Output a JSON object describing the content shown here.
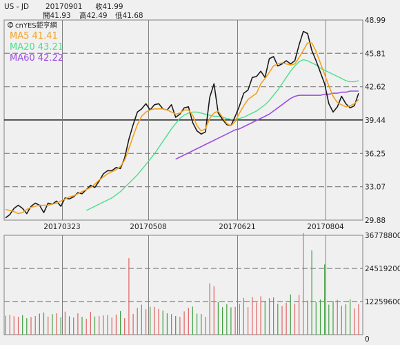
{
  "header": {
    "symbol": "US - JD",
    "date": "20170901",
    "close": "收41.99",
    "open": "開41.93",
    "high": "高42.49",
    "low": "低41.68"
  },
  "brand": {
    "text": "cnYES鉅亨網",
    "icon": "copyright-icon"
  },
  "legend": {
    "ma5": "MA5 41.41",
    "ma20": "MA20 43.21",
    "ma60": "MA60 42.22"
  },
  "colors": {
    "background": "#f0f0f0",
    "price": "#1a1a1a",
    "ma5": "#f5a018",
    "ma20": "#48e08a",
    "ma60": "#9a4ee0",
    "vol_up": "#e06060",
    "vol_down": "#40a040",
    "grid": "#808080",
    "border": "#808080"
  },
  "chart_data": [
    {
      "type": "line",
      "name": "price",
      "x_ticks": [
        "20170323",
        "20170508",
        "20170621",
        "20170804"
      ],
      "y_ticks": [
        "48.99",
        "45.81",
        "42.62",
        "39.44",
        "36.25",
        "33.07",
        "29.88"
      ],
      "ylim": [
        29.88,
        48.99
      ],
      "reference_line": 39.44,
      "series": [
        {
          "name": "MA5",
          "key": "ma5",
          "values": [
            30.9,
            30.8,
            30.7,
            30.5,
            30.6,
            30.9,
            31.1,
            31.2,
            31.3,
            31.3,
            31.3,
            31.4,
            31.5,
            31.7,
            31.9,
            32.1,
            32.2,
            32.4,
            32.6,
            32.8,
            33.0,
            33.3,
            33.7,
            34.0,
            34.3,
            34.5,
            34.7,
            35.0,
            35.6,
            36.7,
            37.9,
            39.0,
            39.8,
            40.2,
            40.4,
            40.5,
            40.5,
            40.5,
            40.4,
            40.2,
            40.0,
            40.1,
            40.4,
            40.4,
            39.9,
            38.9,
            38.4,
            38.6,
            39.6,
            40.1,
            40.3,
            39.7,
            39.1,
            38.9,
            39.3,
            40.1,
            40.8,
            41.4,
            41.7,
            42.0,
            42.9,
            43.4,
            44.0,
            44.6,
            44.8,
            44.9,
            44.8,
            44.7,
            44.8,
            45.4,
            46.1,
            46.8,
            46.8,
            46.0,
            44.9,
            43.8,
            42.7,
            41.7,
            41.1,
            40.9,
            40.7,
            40.8,
            41.0,
            41.4
          ]
        },
        {
          "name": "MA20",
          "key": "ma20",
          "values": [
            null,
            null,
            null,
            null,
            null,
            null,
            null,
            null,
            null,
            null,
            null,
            null,
            null,
            null,
            null,
            null,
            null,
            null,
            null,
            30.8,
            31.0,
            31.2,
            31.4,
            31.6,
            31.8,
            32.0,
            32.3,
            32.6,
            33.0,
            33.4,
            33.8,
            34.2,
            34.7,
            35.2,
            35.7,
            36.2,
            36.8,
            37.4,
            38.0,
            38.6,
            39.1,
            39.6,
            39.9,
            40.1,
            40.2,
            40.2,
            40.1,
            40.0,
            39.9,
            39.8,
            39.8,
            39.7,
            39.6,
            39.5,
            39.5,
            39.6,
            39.7,
            39.9,
            40.1,
            40.3,
            40.6,
            40.9,
            41.3,
            41.8,
            42.3,
            42.9,
            43.5,
            44.1,
            44.6,
            45.0,
            45.2,
            45.1,
            44.9,
            44.7,
            44.4,
            44.2,
            44.0,
            43.8,
            43.6,
            43.4,
            43.2,
            43.1,
            43.1,
            43.2
          ]
        },
        {
          "name": "MA60",
          "key": "ma60",
          "values": [
            null,
            null,
            null,
            null,
            null,
            null,
            null,
            null,
            null,
            null,
            null,
            null,
            null,
            null,
            null,
            null,
            null,
            null,
            null,
            null,
            null,
            null,
            null,
            null,
            null,
            null,
            null,
            null,
            null,
            null,
            null,
            null,
            null,
            null,
            null,
            null,
            null,
            null,
            null,
            null,
            35.7,
            35.9,
            36.1,
            36.3,
            36.5,
            36.7,
            36.9,
            37.1,
            37.3,
            37.5,
            37.7,
            37.9,
            38.1,
            38.3,
            38.5,
            38.6,
            38.8,
            39.0,
            39.2,
            39.4,
            39.6,
            39.8,
            40.0,
            40.3,
            40.6,
            40.9,
            41.2,
            41.5,
            41.7,
            41.8,
            41.8,
            41.8,
            41.8,
            41.8,
            41.8,
            41.9,
            41.9,
            42.0,
            42.0,
            42.1,
            42.1,
            42.2,
            42.2,
            42.2
          ]
        },
        {
          "name": "Close",
          "key": "price",
          "values": [
            30.1,
            30.4,
            31.0,
            31.3,
            31.0,
            30.5,
            31.2,
            31.5,
            31.3,
            30.6,
            31.5,
            31.4,
            31.7,
            31.2,
            32.0,
            31.9,
            32.1,
            32.5,
            32.4,
            32.8,
            33.2,
            33.0,
            33.6,
            34.3,
            34.6,
            34.6,
            34.9,
            34.8,
            35.8,
            37.6,
            39.0,
            40.2,
            40.5,
            41.0,
            40.4,
            40.9,
            41.0,
            40.5,
            40.4,
            40.9,
            39.7,
            40.0,
            40.6,
            40.7,
            39.2,
            38.4,
            38.1,
            38.3,
            41.6,
            42.9,
            40.1,
            39.5,
            39.0,
            38.9,
            39.8,
            40.8,
            42.0,
            42.3,
            43.5,
            43.6,
            44.1,
            43.5,
            45.3,
            45.5,
            44.6,
            44.8,
            45.1,
            44.8,
            45.1,
            46.6,
            47.9,
            47.7,
            46.1,
            45.1,
            44.0,
            42.9,
            41.0,
            40.2,
            40.7,
            41.7,
            41.0,
            40.6,
            40.8,
            41.99
          ]
        }
      ]
    },
    {
      "type": "bar",
      "name": "volume",
      "y_ticks": [
        "36778800",
        "24519200",
        "12259600",
        "0"
      ],
      "ylim": [
        0,
        36778800
      ],
      "values": [
        7.0,
        7.3,
        6.8,
        6.6,
        7.2,
        6.1,
        6.5,
        6.9,
        7.8,
        8.2,
        6.7,
        7.6,
        7.9,
        6.4,
        8.5,
        6.8,
        6.3,
        7.9,
        6.6,
        5.9,
        8.4,
        6.7,
        6.9,
        7.1,
        7.3,
        6.3,
        7.4,
        8.7,
        6.1,
        28.3,
        7.7,
        9.9,
        11.1,
        9.4,
        10.3,
        10.3,
        9.5,
        8.9,
        7.9,
        7.6,
        6.9,
        6.6,
        8.6,
        9.9,
        10.4,
        7.8,
        7.7,
        6.6,
        19.0,
        17.9,
        12.1,
        10.2,
        11.3,
        10.1,
        10.3,
        11.4,
        13.6,
        10.2,
        13.9,
        11.9,
        14.2,
        12.5,
        13.5,
        13.8,
        11.4,
        10.6,
        11.8,
        14.9,
        11.5,
        14.7,
        37.6,
        12.6,
        31.2,
        12.0,
        13.0,
        26.0,
        11.1,
        12.5,
        12.9,
        10.7,
        11.2,
        13.1,
        9.7,
        11.3
      ],
      "value_unit_millions": true
    }
  ]
}
